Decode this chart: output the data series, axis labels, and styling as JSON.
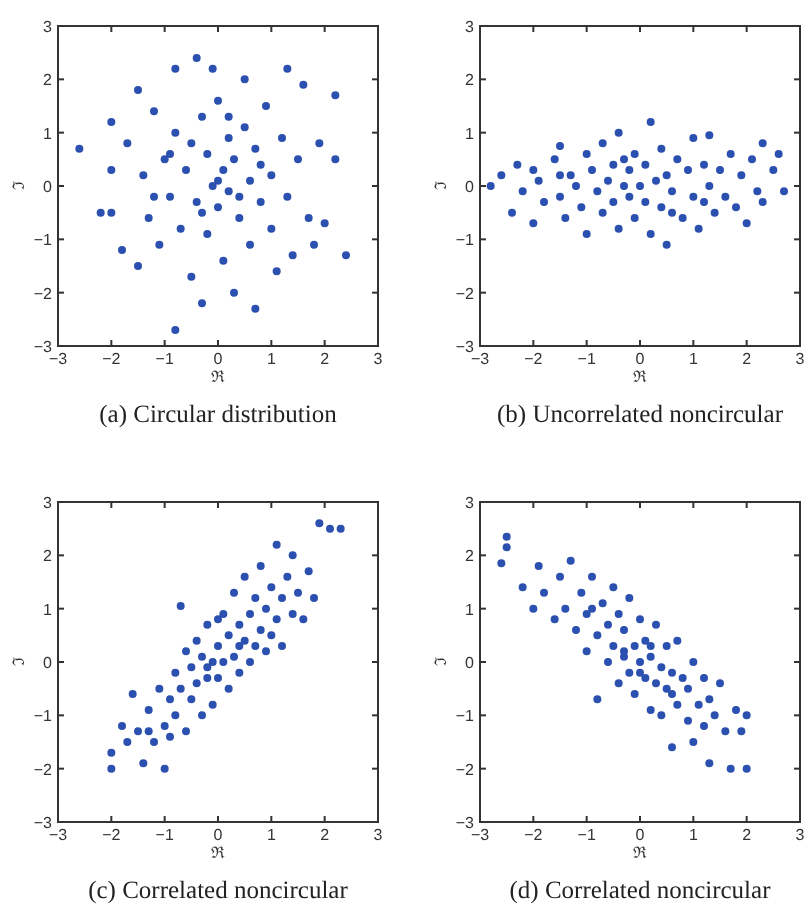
{
  "chart_data": [
    {
      "type": "scatter",
      "title": "(a) Circular distribution",
      "xlabel": "ℜ",
      "ylabel": "ℑ",
      "color": "#2b50b0",
      "marker": "circle",
      "xlim": [
        -3,
        3
      ],
      "ylim": [
        -3,
        3
      ],
      "xticks": [
        -3,
        -2,
        -1,
        0,
        1,
        2,
        3
      ],
      "yticks": [
        -3,
        -2,
        -1,
        0,
        1,
        2,
        3
      ],
      "x": [
        -2.6,
        -2.2,
        -2.0,
        -2.0,
        -2.0,
        -1.8,
        -1.7,
        -1.5,
        -1.5,
        -1.4,
        -1.3,
        -1.2,
        -1.1,
        -1.0,
        -0.9,
        -0.8,
        -0.8,
        -0.8,
        -0.7,
        -0.6,
        -0.5,
        -0.4,
        -0.4,
        -0.3,
        -0.3,
        -0.2,
        -0.2,
        -0.1,
        -0.1,
        0.0,
        0.0,
        0.1,
        0.1,
        0.2,
        0.2,
        0.3,
        0.3,
        0.4,
        0.5,
        0.5,
        0.6,
        0.6,
        0.7,
        0.7,
        0.8,
        0.9,
        1.0,
        1.0,
        1.1,
        1.2,
        1.3,
        1.3,
        1.4,
        1.5,
        1.6,
        1.7,
        1.8,
        1.9,
        2.0,
        2.2,
        2.2,
        2.4,
        0.0,
        -0.5,
        0.4,
        -0.3,
        0.8,
        -0.9,
        0.2,
        -1.2
      ],
      "values": [
        0.7,
        -0.5,
        1.2,
        0.3,
        -0.5,
        -1.2,
        0.8,
        1.8,
        -1.5,
        0.2,
        -0.6,
        1.4,
        -1.1,
        0.5,
        -0.2,
        2.2,
        -2.7,
        1.0,
        -0.8,
        0.3,
        -1.7,
        2.4,
        -0.3,
        1.3,
        -2.2,
        0.6,
        -0.9,
        0.0,
        2.2,
        -0.4,
        1.6,
        0.3,
        -1.4,
        0.9,
        -0.1,
        -2.0,
        0.5,
        -0.6,
        2.0,
        1.1,
        0.1,
        -1.1,
        -2.3,
        0.7,
        -0.3,
        1.5,
        0.2,
        -0.8,
        -1.6,
        0.9,
        2.2,
        -0.2,
        -1.3,
        0.5,
        1.9,
        -0.6,
        -1.1,
        0.8,
        -0.7,
        1.7,
        0.5,
        -1.3,
        0.1,
        0.8,
        -0.2,
        -0.5,
        0.4,
        0.6,
        1.3,
        -0.2
      ]
    },
    {
      "type": "scatter",
      "title": "(b) Uncorrelated noncircular",
      "xlabel": "ℜ",
      "ylabel": "ℑ",
      "color": "#2b50b0",
      "marker": "circle",
      "xlim": [
        -3,
        3
      ],
      "ylim": [
        -3,
        3
      ],
      "xticks": [
        -3,
        -2,
        -1,
        0,
        1,
        2,
        3
      ],
      "yticks": [
        -3,
        -2,
        -1,
        0,
        1,
        2,
        3
      ],
      "x": [
        -2.8,
        -2.6,
        -2.4,
        -2.3,
        -2.2,
        -2.0,
        -2.0,
        -1.9,
        -1.8,
        -1.6,
        -1.5,
        -1.5,
        -1.4,
        -1.3,
        -1.2,
        -1.1,
        -1.0,
        -1.0,
        -0.9,
        -0.8,
        -0.7,
        -0.7,
        -0.6,
        -0.5,
        -0.5,
        -0.4,
        -0.4,
        -0.3,
        -0.2,
        -0.2,
        -0.1,
        -0.1,
        0.0,
        0.1,
        0.1,
        0.2,
        0.2,
        0.3,
        0.4,
        0.4,
        0.5,
        0.5,
        0.6,
        0.7,
        0.8,
        0.9,
        1.0,
        1.0,
        1.1,
        1.2,
        1.3,
        1.3,
        1.4,
        1.5,
        1.6,
        1.7,
        1.8,
        1.9,
        2.0,
        2.1,
        2.2,
        2.3,
        2.3,
        2.5,
        2.6,
        2.7,
        -0.3,
        0.6,
        -1.5,
        1.2
      ],
      "values": [
        0.0,
        0.2,
        -0.5,
        0.4,
        -0.1,
        0.3,
        -0.7,
        0.1,
        -0.3,
        0.5,
        0.75,
        -0.2,
        -0.6,
        0.2,
        0.0,
        -0.4,
        0.6,
        -0.9,
        0.3,
        -0.1,
        0.8,
        -0.5,
        0.1,
        -0.3,
        0.4,
        1.0,
        -0.8,
        0.0,
        0.3,
        -0.2,
        0.6,
        -0.6,
        0.0,
        0.4,
        -0.3,
        1.2,
        -0.9,
        0.1,
        -0.4,
        0.7,
        -1.1,
        0.2,
        -0.1,
        0.5,
        -0.6,
        0.3,
        0.9,
        -0.2,
        -0.8,
        0.4,
        0.0,
        0.95,
        -0.5,
        0.3,
        -0.2,
        0.6,
        -0.4,
        0.2,
        -0.7,
        0.5,
        -0.1,
        0.8,
        -0.3,
        0.3,
        0.6,
        -0.1,
        0.5,
        -0.5,
        0.2,
        -0.3
      ]
    },
    {
      "type": "scatter",
      "title": "(c) Correlated noncircular",
      "xlabel": "ℜ",
      "ylabel": "ℑ",
      "color": "#2b50b0",
      "marker": "circle",
      "xlim": [
        -3,
        3
      ],
      "ylim": [
        -3,
        3
      ],
      "xticks": [
        -3,
        -2,
        -1,
        0,
        1,
        2,
        3
      ],
      "yticks": [
        -3,
        -2,
        -1,
        0,
        1,
        2,
        3
      ],
      "x": [
        -2.0,
        -2.0,
        -1.8,
        -1.7,
        -1.6,
        -1.5,
        -1.4,
        -1.3,
        -1.2,
        -1.1,
        -1.0,
        -1.0,
        -0.9,
        -0.8,
        -0.8,
        -0.7,
        -0.7,
        -0.6,
        -0.6,
        -0.5,
        -0.5,
        -0.4,
        -0.4,
        -0.3,
        -0.3,
        -0.2,
        -0.2,
        -0.1,
        -0.1,
        0.0,
        0.0,
        0.1,
        0.1,
        0.2,
        0.2,
        0.3,
        0.3,
        0.4,
        0.4,
        0.5,
        0.5,
        0.6,
        0.6,
        0.7,
        0.7,
        0.8,
        0.8,
        0.9,
        0.9,
        1.0,
        1.0,
        1.1,
        1.1,
        1.2,
        1.2,
        1.3,
        1.4,
        1.4,
        1.5,
        1.6,
        1.7,
        1.8,
        1.9,
        2.1,
        2.3,
        -1.3,
        -0.2,
        0.4,
        -0.9,
        0.0
      ],
      "values": [
        -2.0,
        -1.7,
        -1.2,
        -1.5,
        -0.6,
        -1.3,
        -1.9,
        -0.9,
        -1.5,
        -0.5,
        -1.2,
        -2.0,
        -0.7,
        -1.0,
        -0.2,
        1.05,
        -0.5,
        -1.3,
        0.2,
        -0.7,
        -0.1,
        0.4,
        -0.4,
        -1.0,
        0.1,
        -0.3,
        0.7,
        0.0,
        -0.8,
        0.3,
        -0.3,
        0.9,
        0.0,
        -0.5,
        0.5,
        1.3,
        0.1,
        -0.2,
        0.7,
        0.4,
        1.6,
        0.0,
        0.9,
        1.2,
        0.3,
        0.6,
        1.8,
        0.2,
        1.0,
        1.4,
        0.5,
        2.2,
        0.8,
        1.2,
        0.3,
        1.6,
        0.9,
        2.0,
        1.3,
        0.8,
        1.7,
        1.2,
        2.6,
        2.5,
        2.5,
        -1.3,
        -0.1,
        0.3,
        -1.4,
        0.8
      ]
    },
    {
      "type": "scatter",
      "title": "(d) Correlated noncircular",
      "xlabel": "ℜ",
      "ylabel": "ℑ",
      "color": "#2b50b0",
      "marker": "circle",
      "xlim": [
        -3,
        3
      ],
      "ylim": [
        -3,
        3
      ],
      "xticks": [
        -3,
        -2,
        -1,
        0,
        1,
        2,
        3
      ],
      "yticks": [
        -3,
        -2,
        -1,
        0,
        1,
        2,
        3
      ],
      "x": [
        -2.6,
        -2.5,
        -2.5,
        -2.2,
        -2.0,
        -1.9,
        -1.8,
        -1.6,
        -1.5,
        -1.4,
        -1.3,
        -1.2,
        -1.1,
        -1.0,
        -1.0,
        -0.9,
        -0.8,
        -0.8,
        -0.7,
        -0.6,
        -0.6,
        -0.5,
        -0.5,
        -0.4,
        -0.4,
        -0.3,
        -0.3,
        -0.2,
        -0.2,
        -0.1,
        -0.1,
        0.0,
        0.0,
        0.1,
        0.1,
        0.2,
        0.2,
        0.3,
        0.3,
        0.4,
        0.4,
        0.5,
        0.5,
        0.6,
        0.6,
        0.7,
        0.7,
        0.8,
        0.9,
        0.9,
        1.0,
        1.0,
        1.1,
        1.2,
        1.2,
        1.3,
        1.3,
        1.4,
        1.5,
        1.6,
        1.7,
        1.8,
        1.9,
        2.0,
        2.0,
        0.2,
        -0.3,
        0.6,
        -0.9,
        0.0
      ],
      "values": [
        1.85,
        2.15,
        2.35,
        1.4,
        1.0,
        1.8,
        1.3,
        0.8,
        1.6,
        1.0,
        1.9,
        0.6,
        1.3,
        0.2,
        0.9,
        1.6,
        -0.7,
        0.5,
        1.1,
        0.0,
        0.7,
        1.4,
        0.3,
        -0.4,
        0.9,
        0.1,
        0.6,
        -0.2,
        1.2,
        0.3,
        -0.6,
        0.0,
        0.8,
        -0.3,
        0.4,
        -0.9,
        0.1,
        -0.4,
        0.7,
        -0.1,
        -1.0,
        -0.5,
        0.3,
        -1.6,
        -0.2,
        -0.8,
        0.4,
        -0.3,
        -1.1,
        -0.5,
        -1.5,
        0.0,
        -0.8,
        -1.2,
        -0.3,
        -1.9,
        -0.7,
        -1.0,
        -0.4,
        -1.3,
        -2.0,
        -0.9,
        -1.3,
        -2.0,
        -1.0,
        0.3,
        0.2,
        -0.6,
        1.0,
        -0.2
      ]
    }
  ]
}
